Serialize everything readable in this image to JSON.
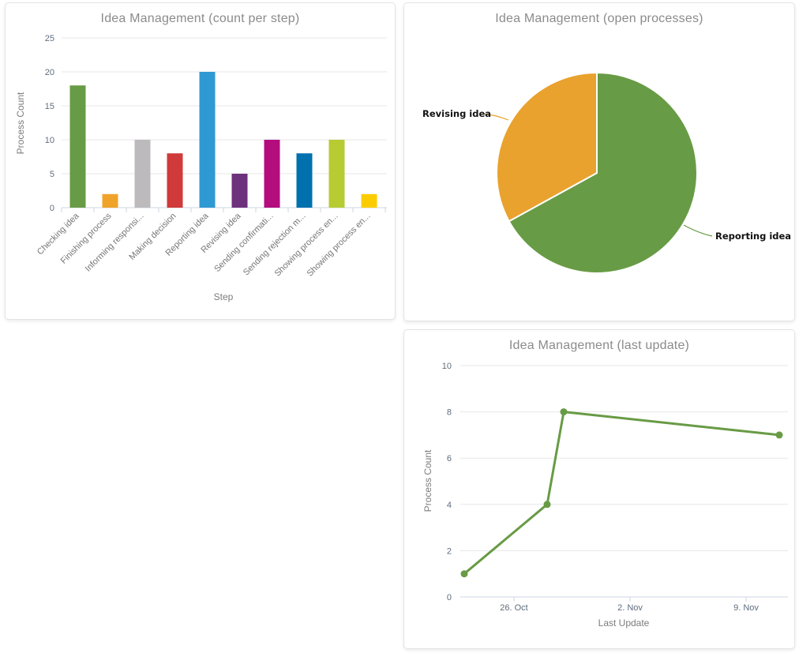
{
  "theme": {
    "page_background": "#ffffff",
    "card_background": "#ffffff",
    "card_border": "#e4e4e4",
    "title_color": "#8b8b8b",
    "tick_label_color": "#5f6d7d",
    "axis_title_color": "#7c7c7c",
    "category_label_color": "#767676",
    "gridline_color": "#e7e7e7",
    "axis_line_color": "#ccd6e2",
    "pie_label_color": "#111111"
  },
  "chart_data": [
    {
      "id": "count-per-step",
      "type": "bar",
      "title": "Idea Management (count per step)",
      "xlabel": "Step",
      "ylabel": "Process Count",
      "ylim": [
        0,
        25
      ],
      "yticks": [
        0,
        5,
        10,
        15,
        20,
        25
      ],
      "grid": "horizontal",
      "legend": "none",
      "categories": [
        "Checking idea",
        "Finishing process",
        "Informing responsi...",
        "Making decision",
        "Reporting idea",
        "Revising idea",
        "Sending confirmati...",
        "Sending rejection m...",
        "Showing process en...",
        "Showing process en..."
      ],
      "values": [
        18,
        2,
        10,
        8,
        20,
        5,
        10,
        8,
        10,
        2
      ],
      "colors": [
        "#689b45",
        "#f0a32a",
        "#bcbabc",
        "#d13a3a",
        "#2f99d3",
        "#6d327b",
        "#b30d7e",
        "#0070af",
        "#b7cb33",
        "#fbcd00"
      ]
    },
    {
      "id": "open-processes",
      "type": "pie",
      "title": "Idea Management (open processes)",
      "legend": "outside-callout-labels",
      "slices": [
        {
          "label": "Reporting idea",
          "percent": 67,
          "color": "#689b45"
        },
        {
          "label": "Revising idea",
          "percent": 33,
          "color": "#e9a22e"
        }
      ]
    },
    {
      "id": "last-update",
      "type": "line",
      "title": "Idea Management (last update)",
      "xlabel": "Last Update",
      "ylabel": "Process Count",
      "ylim": [
        0,
        10
      ],
      "yticks": [
        0,
        2,
        4,
        6,
        8,
        10
      ],
      "grid": "horizontal",
      "legend": "none",
      "color": "#689b45",
      "xticks": [
        {
          "day": 3,
          "label": "26. Oct"
        },
        {
          "day": 10,
          "label": "2. Nov"
        },
        {
          "day": 17,
          "label": "9. Nov"
        }
      ],
      "points": [
        {
          "day": 0,
          "x_date": "23. Oct",
          "y": 1
        },
        {
          "day": 5,
          "x_date": "28. Oct",
          "y": 4
        },
        {
          "day": 6,
          "x_date": "29. Oct",
          "y": 8
        },
        {
          "day": 19,
          "x_date": "11. Nov",
          "y": 7
        }
      ]
    }
  ]
}
